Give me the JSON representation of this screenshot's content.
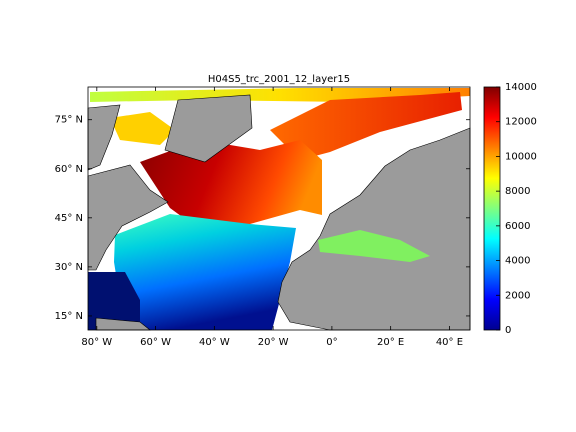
{
  "chart_data": {
    "type": "map",
    "title": "H04S5_trc_2001_12_layer15",
    "xlim": [
      -83,
      47
    ],
    "ylim": [
      10.7,
      85
    ],
    "xticks": [
      {
        "value": -80,
        "label": "80° W"
      },
      {
        "value": -60,
        "label": "60° W"
      },
      {
        "value": -40,
        "label": "40° W"
      },
      {
        "value": -20,
        "label": "20° W"
      },
      {
        "value": 0,
        "label": "0°"
      },
      {
        "value": 20,
        "label": "20° E"
      },
      {
        "value": 40,
        "label": "40° E"
      }
    ],
    "yticks": [
      {
        "value": 15,
        "label": "15° N"
      },
      {
        "value": 30,
        "label": "30° N"
      },
      {
        "value": 45,
        "label": "45° N"
      },
      {
        "value": 60,
        "label": "60° N"
      },
      {
        "value": 75,
        "label": "75° N"
      }
    ],
    "colormap": "jet",
    "clim": [
      0,
      14000
    ],
    "cticks": [
      0,
      2000,
      4000,
      6000,
      8000,
      10000,
      12000,
      14000
    ]
  }
}
